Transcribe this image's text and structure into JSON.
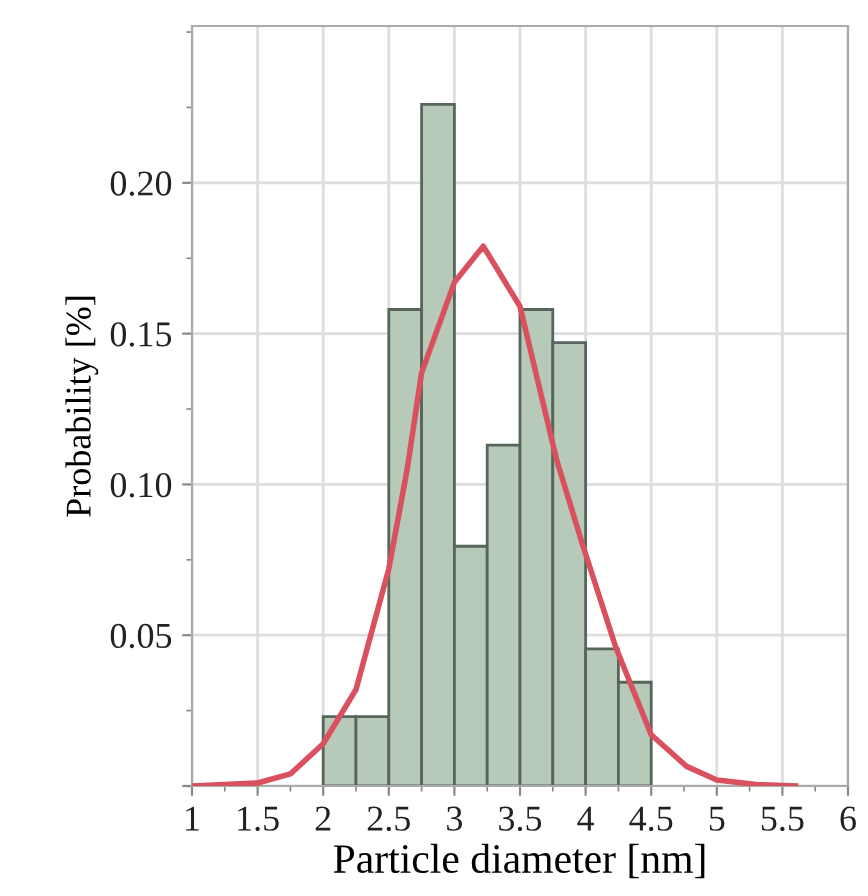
{
  "chart_data": {
    "type": "histogram",
    "xlabel": "Particle diameter [nm]",
    "ylabel": "Probability [%]",
    "bins": [
      2,
      2.25,
      2.5,
      2.75,
      3,
      3.25,
      3.5,
      3.75,
      4,
      4.25,
      4.5
    ],
    "values": [
      0.023,
      0.023,
      0.158,
      0.226,
      0.0795,
      0.113,
      0.158,
      0.147,
      0.0455,
      0.0344
    ],
    "color": "#b7c9b8",
    "series": [
      {
        "type": "line",
        "color": "#d9505e",
        "x": [
          1,
          1.5,
          1.75,
          2,
          2.25,
          2.5,
          2.64,
          2.75,
          3,
          3.22,
          3.5,
          3.78,
          3.97,
          4.23,
          4.5,
          4.77,
          5,
          5.3,
          5.6
        ],
        "values": [
          0,
          0.001,
          0.004,
          0.014,
          0.032,
          0.072,
          0.105,
          0.137,
          0.167,
          0.179,
          0.159,
          0.108,
          0.081,
          0.046,
          0.017,
          0.0065,
          0.002,
          0.0005,
          0
        ]
      }
    ],
    "xlim": [
      1,
      6
    ],
    "xticks": [
      1,
      1.5,
      2,
      2.5,
      3,
      3.5,
      4,
      4.5,
      5,
      5.5,
      6
    ],
    "ylim": [
      0,
      0.252
    ],
    "yticks": [
      {
        "value": 0,
        "label": null
      },
      0.05,
      {
        "value": 0.1,
        "label": "0.10"
      },
      0.15,
      {
        "value": 0.2,
        "label": "0.20"
      }
    ],
    "grid": true
  }
}
